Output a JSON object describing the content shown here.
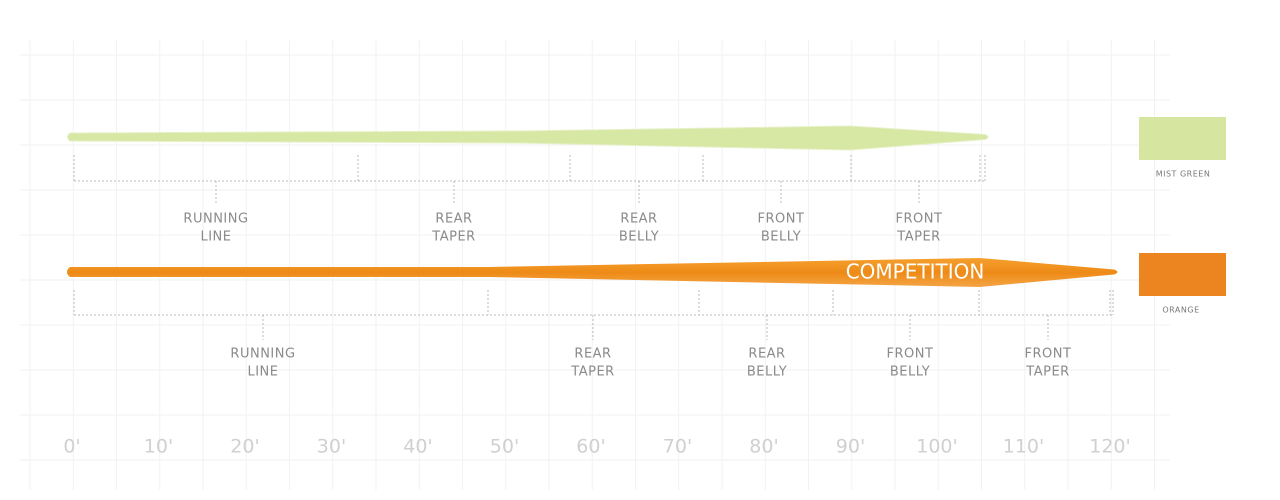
{
  "lines": [
    {
      "color_name": "MIST GREEN",
      "segments": [
        {
          "label": [
            "RUNNING",
            "LINE"
          ]
        },
        {
          "label": [
            "REAR",
            "TAPER"
          ]
        },
        {
          "label": [
            "REAR",
            "BELLY"
          ]
        },
        {
          "label": [
            "FRONT",
            "BELLY"
          ]
        },
        {
          "label": [
            "FRONT",
            "TAPER"
          ]
        }
      ]
    },
    {
      "color_name": "ORANGE",
      "brand": "COMPETITION",
      "segments": [
        {
          "label": [
            "RUNNING",
            "LINE"
          ]
        },
        {
          "label": [
            "REAR",
            "TAPER"
          ]
        },
        {
          "label": [
            "REAR",
            "BELLY"
          ]
        },
        {
          "label": [
            "FRONT",
            "BELLY"
          ]
        },
        {
          "label": [
            "FRONT",
            "TAPER"
          ]
        }
      ]
    }
  ],
  "axis_labels": [
    "0'",
    "10'",
    "20'",
    "30'",
    "40'",
    "50'",
    "60'",
    "70'",
    "80'",
    "90'",
    "100'",
    "110'",
    "120'"
  ]
}
